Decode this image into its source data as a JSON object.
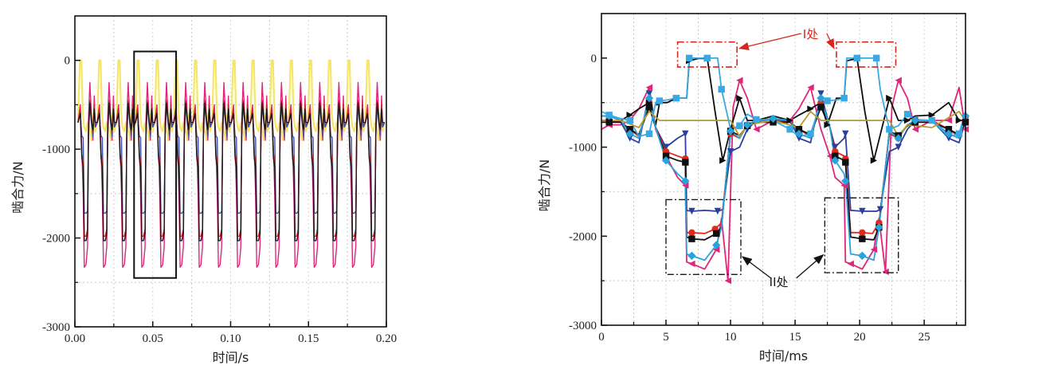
{
  "chart_data": [
    {
      "type": "line",
      "title": "",
      "xlabel": "时间/s",
      "ylabel": "啮合力/N",
      "xlim": [
        0,
        0.2
      ],
      "ylim": [
        -3000,
        500
      ],
      "xticks": [
        "0.00",
        "0.05",
        "0.10",
        "0.15",
        "0.20"
      ],
      "xtick_values": [
        0,
        0.05,
        0.1,
        0.15,
        0.2
      ],
      "yticks": [
        "0",
        "-1000",
        "-2000",
        "-3000"
      ],
      "ytick_values": [
        0,
        -1000,
        -2000,
        -3000
      ],
      "grid": true,
      "period": 0.0123,
      "first_cycle_start": 0.0,
      "highlight_box": {
        "x_range": [
          0.038,
          0.065
        ],
        "y_range": [
          -2450,
          100
        ]
      },
      "series": [
        {
          "name": "magenta",
          "color": "#e0267a",
          "cycle_profile": {
            "t": [
              0,
              0.12,
              0.2,
              0.27,
              0.33,
              0.42,
              0.5,
              0.55,
              0.62,
              0.72,
              0.78,
              0.85,
              0.9,
              1.0
            ],
            "v": [
              -700,
              -500,
              -1000,
              -1500,
              -2330,
              -2300,
              -2100,
              -650,
              -250,
              -700,
              -900,
              -400,
              -750,
              -700
            ]
          }
        },
        {
          "name": "blue",
          "color": "#3b4fb0",
          "cycle_profile": {
            "t": [
              0,
              0.12,
              0.2,
              0.27,
              0.33,
              0.42,
              0.5,
              0.55,
              0.62,
              0.72,
              0.78,
              0.85,
              0.9,
              1.0
            ],
            "v": [
              -700,
              -600,
              -850,
              -870,
              -1720,
              -1720,
              -1700,
              -850,
              -500,
              -750,
              -850,
              -550,
              -750,
              -700
            ]
          }
        },
        {
          "name": "red",
          "color": "#d8261e",
          "cycle_profile": {
            "t": [
              0,
              0.12,
              0.2,
              0.27,
              0.33,
              0.42,
              0.5,
              0.55,
              0.62,
              0.72,
              0.78,
              0.85,
              0.9,
              1.0
            ],
            "v": [
              -700,
              -550,
              -1050,
              -1150,
              -1980,
              -1980,
              -1900,
              -800,
              -450,
              -700,
              -800,
              -500,
              -700,
              -700
            ]
          }
        },
        {
          "name": "black",
          "color": "#1a1a1a",
          "cycle_profile": {
            "t": [
              0,
              0.12,
              0.2,
              0.27,
              0.33,
              0.42,
              0.5,
              0.55,
              0.62,
              0.72,
              0.78,
              0.85,
              0.9,
              1.0
            ],
            "v": [
              -700,
              -600,
              -1100,
              -1200,
              -2030,
              -2030,
              -1950,
              -750,
              -480,
              -700,
              -780,
              -550,
              -700,
              -700
            ]
          }
        },
        {
          "name": "yellow",
          "color": "#f5e66a",
          "cycle_profile": {
            "t": [
              0,
              0.1,
              0.18,
              0.25,
              0.32,
              0.42,
              0.5,
              0.6,
              0.7,
              0.8,
              0.9,
              1.0
            ],
            "v": [
              -700,
              0,
              0,
              -600,
              -750,
              -800,
              -700,
              -750,
              -900,
              -600,
              -800,
              -700
            ]
          }
        }
      ]
    },
    {
      "type": "line",
      "title": "",
      "xlabel": "时间/ms",
      "ylabel": "啮合力/N",
      "xlim": [
        0,
        28.2
      ],
      "ylim": [
        -3000,
        500
      ],
      "xticks": [
        "0",
        "5",
        "10",
        "15",
        "20",
        "25"
      ],
      "xtick_values": [
        0,
        5,
        10,
        15,
        20,
        25
      ],
      "yticks": [
        "0",
        "-1000",
        "-2000",
        "-3000"
      ],
      "ytick_values": [
        0,
        -1000,
        -2000,
        -3000
      ],
      "grid": true,
      "annotations": [
        {
          "text": "I处",
          "color": "#d8261e",
          "boxes": [
            {
              "x_range": [
                5.9,
                10.5
              ],
              "y_range": [
                -100,
                180
              ]
            },
            {
              "x_range": [
                18.2,
                22.8
              ],
              "y_range": [
                -100,
                180
              ]
            }
          ]
        },
        {
          "text": "II处",
          "color": "#1a1a1a",
          "boxes": [
            {
              "x_range": [
                5.0,
                10.8
              ],
              "y_range": [
                -2430,
                -1590
              ]
            },
            {
              "x_range": [
                17.3,
                23.0
              ],
              "y_range": [
                -2410,
                -1570
              ]
            }
          ]
        }
      ],
      "series": [
        {
          "name": "magenta-left-triangle",
          "color": "#e0267a",
          "marker": "triangle-left",
          "x": [
            0,
            0.6,
            1.5,
            2.2,
            2.9,
            3.7,
            4.2,
            5.0,
            5.9,
            6.5,
            6.6,
            7.0,
            8.0,
            8.9,
            9.3,
            9.8,
            10.2,
            10.7,
            11.3,
            12.0,
            13.3,
            14.6,
            15.3,
            16.2,
            17.0,
            17.7,
            18.1,
            18.8,
            18.9,
            19.3,
            20.2,
            21.1,
            21.5,
            22.0,
            22.5,
            23.0,
            23.7,
            24.3,
            25.6,
            26.9,
            27.7,
            28.2
          ],
          "y": [
            -800,
            -750,
            -750,
            -700,
            -570,
            -330,
            -800,
            -1100,
            -1340,
            -1430,
            -2290,
            -2310,
            -2370,
            -2150,
            -1800,
            -2500,
            -550,
            -250,
            -450,
            -800,
            -700,
            -700,
            -570,
            -330,
            -800,
            -1100,
            -1340,
            -1430,
            -2290,
            -2310,
            -2370,
            -2150,
            -1800,
            -2400,
            -550,
            -250,
            -450,
            -800,
            -700,
            -700,
            -330,
            -800
          ]
        },
        {
          "name": "blue-down-triangle",
          "color": "#2b3f9e",
          "marker": "triangle-down",
          "x": [
            0,
            0.6,
            1.5,
            2.2,
            2.9,
            3.7,
            4.2,
            5.0,
            5.9,
            6.5,
            6.6,
            7.0,
            8.0,
            9.0,
            9.4,
            10.0,
            10.7,
            11.3,
            12.0,
            13.3,
            14.6,
            15.3,
            16.2,
            17.0,
            17.7,
            18.1,
            18.8,
            18.9,
            19.3,
            20.2,
            21.3,
            21.6,
            22.3,
            23.0,
            23.7,
            24.3,
            25.6,
            26.9,
            27.7,
            28.2
          ],
          "y": [
            -700,
            -700,
            -720,
            -900,
            -950,
            -400,
            -780,
            -1000,
            -900,
            -850,
            -1710,
            -1720,
            -1710,
            -1720,
            -1700,
            -1050,
            -1000,
            -800,
            -700,
            -700,
            -700,
            -900,
            -950,
            -400,
            -780,
            -1000,
            -900,
            -850,
            -1710,
            -1720,
            -1720,
            -1700,
            -1050,
            -1000,
            -800,
            -700,
            -700,
            -900,
            -950,
            -700
          ]
        },
        {
          "name": "red-circle",
          "color": "#e02a1e",
          "marker": "circle",
          "x": [
            0,
            0.6,
            1.5,
            2.2,
            2.9,
            3.7,
            4.2,
            5.0,
            5.9,
            6.5,
            6.6,
            7.0,
            8.0,
            8.8,
            9.3,
            10.0,
            10.7,
            11.3,
            12.0,
            13.3,
            14.6,
            15.3,
            16.2,
            17.0,
            17.7,
            18.1,
            18.8,
            18.9,
            19.3,
            20.2,
            21.0,
            21.5,
            22.3,
            23.0,
            23.7,
            24.3,
            25.6,
            26.9,
            27.7,
            28.2
          ],
          "y": [
            -700,
            -700,
            -720,
            -800,
            -880,
            -500,
            -780,
            -1050,
            -1100,
            -1130,
            -1960,
            -1960,
            -1970,
            -1920,
            -1850,
            -850,
            -900,
            -750,
            -700,
            -700,
            -720,
            -800,
            -880,
            -500,
            -780,
            -1050,
            -1100,
            -1130,
            -1960,
            -1960,
            -1970,
            -1850,
            -850,
            -900,
            -750,
            -700,
            -700,
            -800,
            -880,
            -700
          ]
        },
        {
          "name": "black-square",
          "color": "#111111",
          "marker": "square",
          "x": [
            0,
            0.6,
            1.5,
            2.2,
            2.9,
            3.7,
            4.2,
            5.0,
            5.9,
            6.5,
            6.6,
            7.0,
            8.0,
            8.9,
            9.3,
            10.0,
            10.7,
            11.3,
            12.0,
            13.3,
            14.6,
            15.3,
            16.2,
            17.0,
            17.7,
            18.1,
            18.8,
            18.9,
            19.3,
            20.2,
            21.1,
            21.5,
            22.3,
            23.0,
            23.7,
            24.3,
            25.6,
            26.9,
            27.7,
            28.2
          ],
          "y": [
            -720,
            -720,
            -720,
            -800,
            -860,
            -550,
            -780,
            -1100,
            -1150,
            -1170,
            -2010,
            -2030,
            -2040,
            -1970,
            -1900,
            -820,
            -870,
            -760,
            -720,
            -720,
            -720,
            -800,
            -860,
            -550,
            -780,
            -1100,
            -1150,
            -1170,
            -2010,
            -2030,
            -2040,
            -1900,
            -820,
            -870,
            -760,
            -720,
            -720,
            -800,
            -860,
            -720
          ]
        },
        {
          "name": "black-right-triangle",
          "color": "#0d0d0d",
          "marker": "triangle-right",
          "x": [
            0,
            0.6,
            1.5,
            2.2,
            2.9,
            3.7,
            4.2,
            4.5,
            5.1,
            5.8,
            6.6,
            6.8,
            7.5,
            8.2,
            8.8,
            9.4,
            10.0,
            10.7,
            11.3,
            12.0,
            13.3,
            14.6,
            15.3,
            16.2,
            17.0,
            17.5,
            18.2,
            18.8,
            19.0,
            19.8,
            20.4,
            21.1,
            21.7,
            22.3,
            23.0,
            23.7,
            24.3,
            25.6,
            26.9,
            27.7,
            28.2
          ],
          "y": [
            -650,
            -650,
            -700,
            -640,
            -570,
            -500,
            -750,
            -500,
            -500,
            -450,
            -450,
            -30,
            -5,
            -5,
            -600,
            -1150,
            -800,
            -450,
            -700,
            -700,
            -650,
            -700,
            -640,
            -570,
            -500,
            -750,
            -450,
            -450,
            -30,
            -5,
            -600,
            -1150,
            -800,
            -450,
            -700,
            -700,
            -650,
            -640,
            -500,
            -700,
            -700
          ]
        },
        {
          "name": "cyan-diamond",
          "color": "#2aa3dc",
          "marker": "diamond",
          "x": [
            0,
            0.6,
            1.5,
            2.2,
            2.9,
            3.7,
            4.2,
            5.0,
            5.9,
            6.5,
            6.6,
            7.0,
            8.0,
            8.9,
            9.3,
            10.0,
            10.7,
            11.3,
            12.0,
            13.3,
            14.6,
            15.3,
            16.2,
            17.0,
            17.7,
            18.1,
            18.8,
            18.9,
            19.3,
            20.2,
            21.1,
            21.5,
            22.3,
            23.0,
            23.7,
            24.3,
            25.6,
            26.9,
            27.7,
            28.2
          ],
          "y": [
            -650,
            -650,
            -700,
            -850,
            -900,
            -450,
            -780,
            -1150,
            -1300,
            -1380,
            -2200,
            -2220,
            -2270,
            -2100,
            -1900,
            -820,
            -900,
            -750,
            -700,
            -680,
            -700,
            -850,
            -900,
            -450,
            -780,
            -1150,
            -1300,
            -1380,
            -2200,
            -2220,
            -2270,
            -1900,
            -820,
            -900,
            -750,
            -700,
            -700,
            -850,
            -900,
            -650
          ]
        },
        {
          "name": "lightblue-square",
          "color": "#39a9e6",
          "marker": "square",
          "x": [
            0,
            0.6,
            1.5,
            2.2,
            2.9,
            3.7,
            4.2,
            4.5,
            5.1,
            5.8,
            6.6,
            6.8,
            7.5,
            8.2,
            9.0,
            9.3,
            10.0,
            10.7,
            11.3,
            12.0,
            13.3,
            14.6,
            15.3,
            16.2,
            17.0,
            17.5,
            18.2,
            18.8,
            19.0,
            19.8,
            20.4,
            21.3,
            21.6,
            22.3,
            23.0,
            23.7,
            24.3,
            25.6,
            26.9,
            27.7,
            28.2
          ],
          "y": [
            -600,
            -640,
            -680,
            -700,
            -880,
            -850,
            -500,
            -480,
            -470,
            -450,
            -450,
            0,
            0,
            0,
            0,
            -350,
            -800,
            -760,
            -630,
            -690,
            -700,
            -800,
            -880,
            -850,
            -500,
            -480,
            -470,
            -450,
            0,
            0,
            0,
            0,
            -350,
            -800,
            -760,
            -630,
            -690,
            -700,
            -880,
            -850,
            -600
          ]
        },
        {
          "name": "olive",
          "color": "#b89a2c",
          "marker": "none",
          "x": [
            0,
            1.5,
            2.9,
            3.7,
            4.5,
            10.0,
            10.7,
            11.3,
            13.3,
            15.3,
            16.2,
            17.0,
            22.3,
            23.0,
            23.7,
            25.6,
            27.7,
            28.2
          ],
          "y": [
            -700,
            -700,
            -780,
            -600,
            -700,
            -700,
            -880,
            -750,
            -700,
            -780,
            -600,
            -700,
            -700,
            -880,
            -750,
            -780,
            -600,
            -700
          ]
        }
      ]
    }
  ]
}
